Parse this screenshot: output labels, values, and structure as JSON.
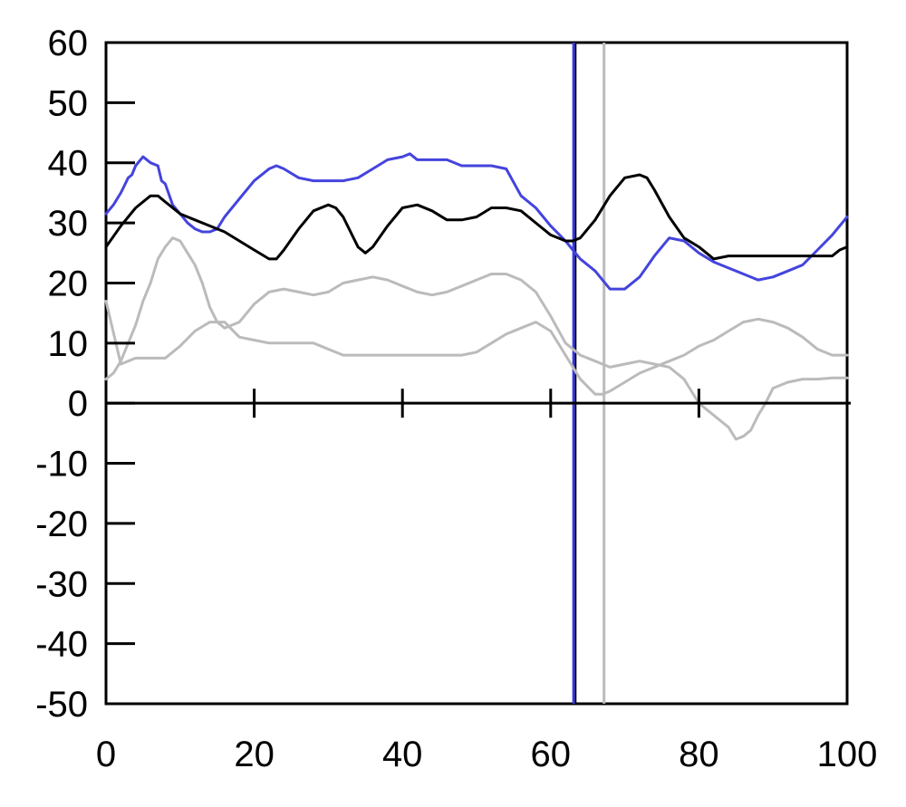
{
  "chart_data": {
    "type": "line",
    "title": "",
    "xlabel": "",
    "ylabel": "",
    "xlim": [
      0,
      100
    ],
    "ylim": [
      -50,
      60
    ],
    "x_ticks": [
      0,
      20,
      40,
      60,
      80,
      100
    ],
    "x_tick_labels": [
      "0",
      "20",
      "40",
      "60",
      "80",
      "100"
    ],
    "y_ticks": [
      60,
      50,
      40,
      30,
      20,
      10,
      0,
      -10,
      -20,
      -30,
      -40,
      -50
    ],
    "y_tick_labels": [
      "60",
      "50",
      "40",
      "30",
      "20",
      "10",
      "0",
      "-10",
      "-20",
      "-30",
      "-40",
      "-50"
    ],
    "grid": false,
    "legend": "none",
    "vertical_lines": [
      {
        "x": 63.3,
        "color": "#000000"
      },
      {
        "x": 63.1,
        "color": "#3a3ae0"
      },
      {
        "x": 67.2,
        "color": "#bbbbbb"
      }
    ],
    "series": [
      {
        "color": "#4444dd",
        "x": [
          0,
          1,
          2,
          3,
          3.5,
          4,
          5,
          6,
          7,
          7.5,
          8,
          9,
          10,
          11,
          12,
          13,
          14,
          15,
          16,
          18,
          20,
          22,
          23,
          24,
          26,
          28,
          30,
          32,
          34,
          36,
          38,
          40,
          41,
          42,
          44,
          46,
          48,
          50,
          52,
          54,
          56,
          58,
          60,
          62,
          63,
          64,
          66,
          68,
          70,
          72,
          74,
          76,
          78,
          80,
          82,
          84,
          86,
          88,
          90,
          92,
          94,
          96,
          98,
          100
        ],
        "y": [
          31.5,
          33,
          35,
          37.5,
          38,
          39.5,
          41,
          40,
          39.5,
          37,
          36.5,
          33,
          31.5,
          30,
          29,
          28.5,
          28.5,
          29,
          31,
          34,
          37,
          39,
          39.5,
          39,
          37.5,
          37,
          37,
          37,
          37.5,
          39,
          40.5,
          41,
          41.5,
          40.5,
          40.5,
          40.5,
          39.5,
          39.5,
          39.5,
          39,
          34.5,
          32.5,
          29.5,
          27,
          25.5,
          24,
          22,
          19,
          19,
          21,
          24.5,
          27.5,
          27,
          25,
          23.5,
          22.5,
          21.5,
          20.5,
          21,
          22,
          23,
          25.5,
          28,
          31
        ]
      },
      {
        "color": "#000000",
        "x": [
          0,
          2,
          4,
          6,
          7,
          8,
          10,
          12,
          14,
          16,
          18,
          20,
          22,
          23,
          24,
          26,
          28,
          30,
          31,
          32,
          34,
          35,
          36,
          38,
          40,
          42,
          44,
          46,
          48,
          50,
          52,
          54,
          56,
          58,
          60,
          62,
          63,
          64,
          66,
          68,
          70,
          72,
          73,
          74,
          76,
          78,
          80,
          82,
          84,
          86,
          88,
          90,
          92,
          94,
          96,
          98,
          99,
          100
        ],
        "y": [
          26,
          29.5,
          32.5,
          34.5,
          34.5,
          33.5,
          31.5,
          30.5,
          29.5,
          28.5,
          27,
          25.5,
          24,
          24,
          25.5,
          29,
          32,
          33,
          32.5,
          31,
          26,
          25,
          26,
          29.5,
          32.5,
          33,
          32,
          30.5,
          30.5,
          31,
          32.5,
          32.5,
          32,
          30,
          28,
          27,
          27,
          27.5,
          30.5,
          34.5,
          37.5,
          38,
          37.5,
          35.5,
          31,
          27.5,
          26,
          24,
          24.5,
          24.5,
          24.5,
          24.5,
          24.5,
          24.5,
          24.5,
          24.5,
          25.5,
          26
        ]
      },
      {
        "color": "#bbbbbb",
        "x": [
          0,
          1,
          2,
          3,
          4,
          5,
          6,
          7,
          8,
          9,
          10,
          11,
          12,
          13,
          14,
          15,
          16,
          18,
          20,
          22,
          24,
          26,
          28,
          30,
          32,
          34,
          36,
          38,
          40,
          42,
          44,
          46,
          48,
          50,
          52,
          54,
          56,
          58,
          60,
          62,
          64,
          66,
          68,
          70,
          72,
          74,
          76,
          78,
          80,
          82,
          84,
          85,
          86,
          87,
          88,
          89,
          90,
          92,
          94,
          96,
          98,
          100
        ],
        "y": [
          4,
          5,
          7,
          10,
          13,
          17,
          20,
          24,
          26,
          27.5,
          27,
          25,
          23,
          20,
          16,
          13.5,
          12.5,
          13.5,
          16.5,
          18.5,
          19,
          18.5,
          18,
          18.5,
          20,
          20.5,
          21,
          20.5,
          19.5,
          18.5,
          18,
          18.5,
          19.5,
          20.5,
          21.5,
          21.5,
          20.5,
          18.5,
          14.5,
          10,
          8,
          7,
          6,
          6.5,
          7,
          6.5,
          6,
          4,
          0,
          -2,
          -4,
          -6,
          -5.5,
          -4.5,
          -2,
          0,
          2.5,
          3.5,
          4,
          4,
          4.2,
          4.2
        ]
      },
      {
        "color": "#bbbbbb",
        "x": [
          0,
          2,
          4,
          6,
          8,
          10,
          12,
          14,
          16,
          18,
          20,
          22,
          24,
          26,
          28,
          30,
          32,
          34,
          36,
          38,
          40,
          42,
          44,
          46,
          48,
          50,
          52,
          54,
          56,
          58,
          60,
          62,
          64,
          66,
          67,
          68,
          70,
          72,
          74,
          76,
          78,
          80,
          82,
          84,
          86,
          88,
          90,
          92,
          94,
          96,
          98,
          100
        ],
        "y": [
          17,
          6.5,
          7.5,
          7.5,
          7.5,
          9.5,
          12,
          13.5,
          13.5,
          11,
          10.5,
          10,
          10,
          10,
          10,
          9,
          8,
          8,
          8,
          8,
          8,
          8,
          8,
          8,
          8,
          8.5,
          10,
          11.5,
          12.5,
          13.5,
          12,
          8,
          4,
          1.5,
          1.5,
          2,
          3.5,
          5,
          6,
          7,
          8,
          9.5,
          10.5,
          12,
          13.5,
          14,
          13.5,
          12.5,
          11,
          9,
          8,
          8
        ]
      }
    ]
  }
}
